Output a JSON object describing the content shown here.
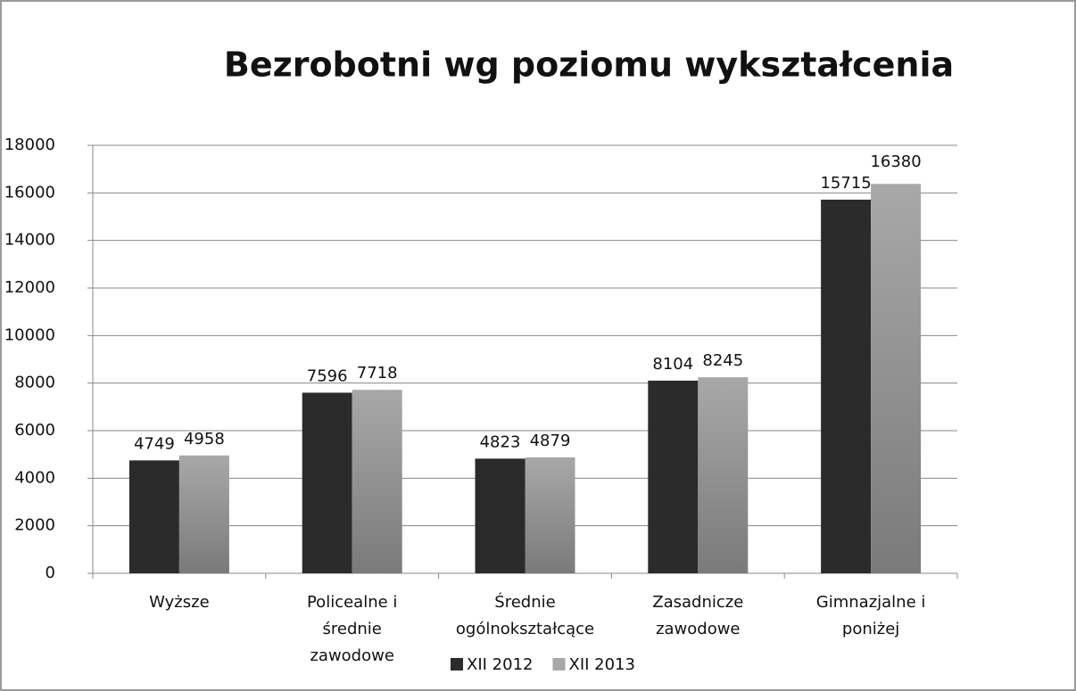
{
  "chart_data": {
    "type": "bar",
    "title": "Bezrobotni wg poziomu wykształcenia",
    "categories": [
      "Wyższe",
      "Policealne i średnie zawodowe",
      "Średnie ogólnokształcące",
      "Zasadnicze zawodowe",
      "Gimnazjalne i poniżej"
    ],
    "series": [
      {
        "name": "XII 2012",
        "color": "#2b2b2b",
        "values": [
          4749,
          7596,
          4823,
          8104,
          15715
        ]
      },
      {
        "name": "XII 2013",
        "color": "#a8a8a8",
        "values": [
          4958,
          7718,
          4879,
          8245,
          16380
        ]
      }
    ],
    "ylim": [
      0,
      18000
    ],
    "yticks": [
      0,
      2000,
      4000,
      6000,
      8000,
      10000,
      12000,
      14000,
      16000,
      18000
    ],
    "grid": true,
    "legend": "bottom"
  }
}
